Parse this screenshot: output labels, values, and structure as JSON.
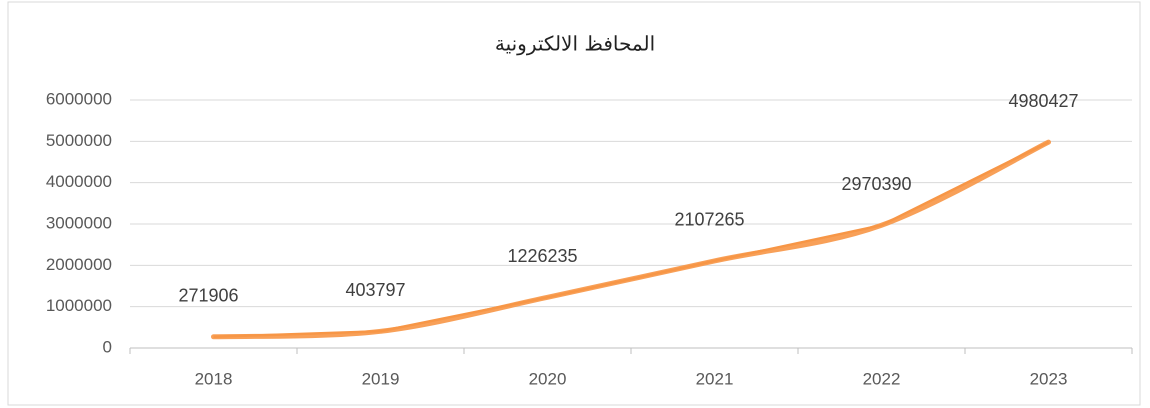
{
  "chart_data": {
    "type": "line",
    "title": "المحافظ الالكترونية",
    "categories": [
      "2018",
      "2019",
      "2020",
      "2021",
      "2022",
      "2023"
    ],
    "series": [
      {
        "name": "المحافظ الالكترونية",
        "color": "#f79646",
        "values": [
          271906,
          403797,
          1226235,
          2107265,
          2970390,
          4980427
        ]
      }
    ],
    "ylim": [
      0,
      6000000
    ],
    "yticks": [
      0,
      1000000,
      2000000,
      3000000,
      4000000,
      5000000,
      6000000
    ],
    "grid": true
  }
}
